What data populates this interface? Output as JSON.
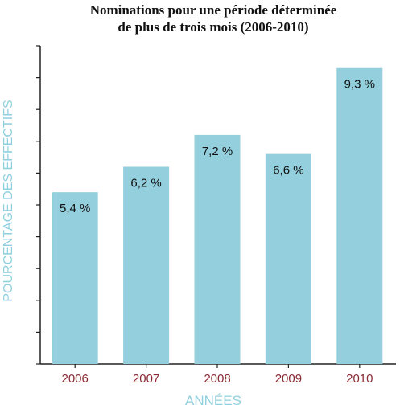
{
  "chart_data": {
    "type": "bar",
    "title_lines": [
      "Nominations pour une période déterminée",
      "de plus de trois mois (2006-2010)"
    ],
    "xlabel": "ANNÉES",
    "ylabel": "POURCENTAGE DES EFFECTIFS",
    "categories": [
      "2006",
      "2007",
      "2008",
      "2009",
      "2010"
    ],
    "values": [
      5.4,
      6.2,
      7.2,
      6.6,
      9.3
    ],
    "value_labels": [
      "5,4 %",
      "6,2 %",
      "7,2 %",
      "6,6 %",
      "9,3 %"
    ],
    "ylim": [
      0,
      10
    ],
    "grid": false,
    "colors": {
      "bar": "#94cfde",
      "category_label": "#8b2a33",
      "axis_title": "#8fd0de",
      "axis": "#222222",
      "value_label": "#111111"
    }
  }
}
